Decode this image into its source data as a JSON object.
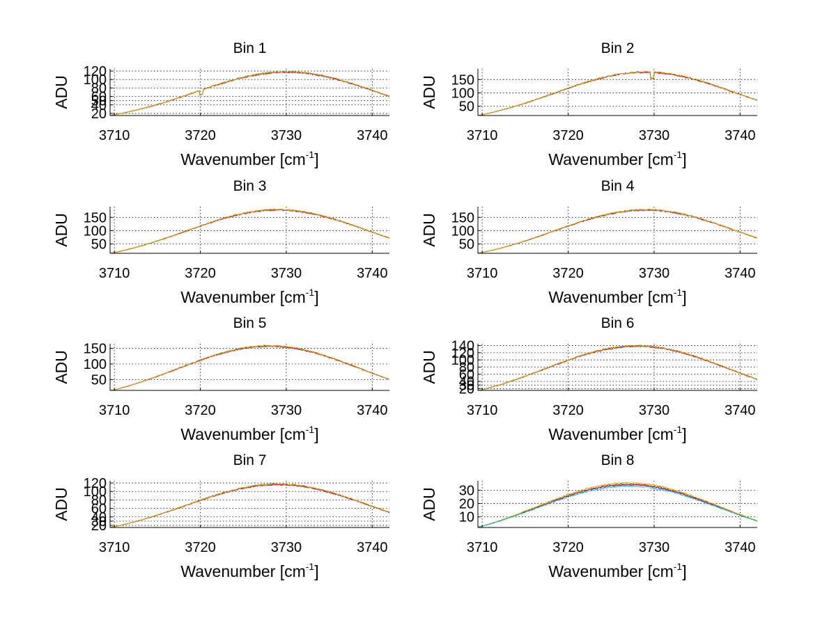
{
  "chart_data": [
    {
      "type": "line",
      "title": "Bin 1",
      "xlabel": "Wavenumber [cm",
      "xlabel_sup": "-1",
      "xlabel_close": "]",
      "ylabel": "ADU",
      "xlim": [
        3709.5,
        3742
      ],
      "ylim": [
        15,
        125
      ],
      "xticks": [
        3710,
        3720,
        3730,
        3740
      ],
      "yticks": [
        20,
        40,
        50,
        60,
        80,
        100,
        120
      ],
      "series": [
        {
          "name": "blue",
          "color": "#1f3fbf",
          "peak_x": 3730,
          "peak_y": 118,
          "width": 15,
          "y_at_3710": 17,
          "dip_x": 3720.1,
          "dip_depth": 10
        },
        {
          "name": "red",
          "color": "#d62020",
          "peak_x": 3730,
          "peak_y": 117,
          "width": 15,
          "y_at_3710": 17,
          "dip_x": 3720.1,
          "dip_depth": 10
        },
        {
          "name": "yellow",
          "color": "#c8a800",
          "peak_x": 3730,
          "peak_y": 118.5,
          "width": 15,
          "y_at_3710": 17,
          "dip_x": 3720.1,
          "dip_depth": 10
        }
      ]
    },
    {
      "type": "line",
      "title": "Bin 2",
      "xlabel": "Wavenumber [cm",
      "xlabel_sup": "-1",
      "xlabel_close": "]",
      "ylabel": "ADU",
      "xlim": [
        3709.5,
        3742
      ],
      "ylim": [
        15,
        190
      ],
      "xticks": [
        3710,
        3720,
        3730,
        3740
      ],
      "yticks": [
        50,
        100,
        150
      ],
      "series": [
        {
          "name": "blue",
          "color": "#1f3fbf",
          "peak_x": 3729,
          "peak_y": 178,
          "width": 15,
          "y_at_3710": 18,
          "dip_x": 3729.8,
          "dip_depth": 22
        },
        {
          "name": "red",
          "color": "#d62020",
          "peak_x": 3729,
          "peak_y": 177,
          "width": 15,
          "y_at_3710": 18,
          "dip_x": 3729.8,
          "dip_depth": 22
        },
        {
          "name": "yellow",
          "color": "#c8a800",
          "peak_x": 3729,
          "peak_y": 179,
          "width": 15,
          "y_at_3710": 18,
          "dip_x": 3729.8,
          "dip_depth": 22
        }
      ]
    },
    {
      "type": "line",
      "title": "Bin 3",
      "xlabel": "Wavenumber [cm",
      "xlabel_sup": "-1",
      "xlabel_close": "]",
      "ylabel": "ADU",
      "xlim": [
        3709.5,
        3742
      ],
      "ylim": [
        15,
        190
      ],
      "xticks": [
        3710,
        3720,
        3730,
        3740
      ],
      "yticks": [
        50,
        100,
        150
      ],
      "series": [
        {
          "name": "blue",
          "color": "#1f3fbf",
          "peak_x": 3729,
          "peak_y": 178,
          "width": 15,
          "y_at_3710": 18,
          "dip_x": null,
          "dip_depth": 0
        },
        {
          "name": "red",
          "color": "#d62020",
          "peak_x": 3729,
          "peak_y": 177,
          "width": 15,
          "y_at_3710": 18,
          "dip_x": null,
          "dip_depth": 0
        },
        {
          "name": "yellow",
          "color": "#c8a800",
          "peak_x": 3729,
          "peak_y": 179,
          "width": 15,
          "y_at_3710": 18,
          "dip_x": null,
          "dip_depth": 0
        }
      ]
    },
    {
      "type": "line",
      "title": "Bin 4",
      "xlabel": "Wavenumber [cm",
      "xlabel_sup": "-1",
      "xlabel_close": "]",
      "ylabel": "ADU",
      "xlim": [
        3709.5,
        3742
      ],
      "ylim": [
        15,
        190
      ],
      "xticks": [
        3710,
        3720,
        3730,
        3740
      ],
      "yticks": [
        50,
        100,
        150
      ],
      "series": [
        {
          "name": "blue",
          "color": "#1f3fbf",
          "peak_x": 3729,
          "peak_y": 178,
          "width": 15,
          "y_at_3710": 18,
          "dip_x": null,
          "dip_depth": 0
        },
        {
          "name": "red",
          "color": "#d62020",
          "peak_x": 3729,
          "peak_y": 177,
          "width": 15,
          "y_at_3710": 18,
          "dip_x": null,
          "dip_depth": 0
        },
        {
          "name": "yellow",
          "color": "#c8a800",
          "peak_x": 3729,
          "peak_y": 179,
          "width": 15,
          "y_at_3710": 18,
          "dip_x": null,
          "dip_depth": 0
        }
      ]
    },
    {
      "type": "line",
      "title": "Bin 5",
      "xlabel": "Wavenumber [cm",
      "xlabel_sup": "-1",
      "xlabel_close": "]",
      "ylabel": "ADU",
      "xlim": [
        3709.5,
        3742
      ],
      "ylim": [
        15,
        165
      ],
      "xticks": [
        3710,
        3720,
        3730,
        3740
      ],
      "yticks": [
        50,
        100,
        150
      ],
      "series": [
        {
          "name": "blue",
          "color": "#1f3fbf",
          "peak_x": 3728,
          "peak_y": 158,
          "width": 15,
          "y_at_3710": 17,
          "dip_x": null,
          "dip_depth": 0
        },
        {
          "name": "red",
          "color": "#d62020",
          "peak_x": 3728,
          "peak_y": 157,
          "width": 15,
          "y_at_3710": 17,
          "dip_x": null,
          "dip_depth": 0
        },
        {
          "name": "yellow",
          "color": "#c8a800",
          "peak_x": 3728,
          "peak_y": 159,
          "width": 15,
          "y_at_3710": 17,
          "dip_x": null,
          "dip_depth": 0
        }
      ]
    },
    {
      "type": "line",
      "title": "Bin 6",
      "xlabel": "Wavenumber [cm",
      "xlabel_sup": "-1",
      "xlabel_close": "]",
      "ylabel": "ADU",
      "xlim": [
        3709.5,
        3742
      ],
      "ylim": [
        15,
        145
      ],
      "xticks": [
        3710,
        3720,
        3730,
        3740
      ],
      "yticks": [
        20,
        30,
        40,
        60,
        80,
        100,
        120,
        140
      ],
      "series": [
        {
          "name": "blue",
          "color": "#1f3fbf",
          "peak_x": 3728,
          "peak_y": 139,
          "width": 15,
          "y_at_3710": 17,
          "dip_x": null,
          "dip_depth": 0
        },
        {
          "name": "red",
          "color": "#d62020",
          "peak_x": 3728,
          "peak_y": 138,
          "width": 15,
          "y_at_3710": 17,
          "dip_x": null,
          "dip_depth": 0
        },
        {
          "name": "yellow",
          "color": "#c8a800",
          "peak_x": 3728,
          "peak_y": 140,
          "width": 15,
          "y_at_3710": 17,
          "dip_x": null,
          "dip_depth": 0
        }
      ]
    },
    {
      "type": "line",
      "title": "Bin 7",
      "xlabel": "Wavenumber [cm",
      "xlabel_sup": "-1",
      "xlabel_close": "]",
      "ylabel": "ADU",
      "xlim": [
        3709.5,
        3742
      ],
      "ylim": [
        15,
        125
      ],
      "xticks": [
        3710,
        3720,
        3730,
        3740
      ],
      "yticks": [
        20,
        30,
        40,
        60,
        80,
        100,
        120
      ],
      "series": [
        {
          "name": "blue",
          "color": "#1f3fbf",
          "peak_x": 3729,
          "peak_y": 117,
          "width": 15,
          "y_at_3710": 17,
          "dip_x": null,
          "dip_depth": 0
        },
        {
          "name": "red",
          "color": "#d62020",
          "peak_x": 3729,
          "peak_y": 116,
          "width": 15,
          "y_at_3710": 17,
          "dip_x": null,
          "dip_depth": 0
        },
        {
          "name": "yellow",
          "color": "#c8a800",
          "peak_x": 3729,
          "peak_y": 118,
          "width": 15,
          "y_at_3710": 17,
          "dip_x": null,
          "dip_depth": 0
        }
      ]
    },
    {
      "type": "line",
      "title": "Bin 8",
      "xlabel": "Wavenumber [cm",
      "xlabel_sup": "-1",
      "xlabel_close": "]",
      "ylabel": "ADU",
      "xlim": [
        3709.5,
        3742
      ],
      "ylim": [
        2,
        37
      ],
      "xticks": [
        3710,
        3720,
        3730,
        3740
      ],
      "yticks": [
        10,
        20,
        30
      ],
      "series": [
        {
          "name": "blue",
          "color": "#1f3fbf",
          "peak_x": 3727,
          "peak_y": 34,
          "width": 15,
          "y_at_3710": 3,
          "dip_x": null,
          "dip_depth": 0
        },
        {
          "name": "red",
          "color": "#d62020",
          "peak_x": 3727,
          "peak_y": 34.5,
          "width": 15,
          "y_at_3710": 3,
          "dip_x": null,
          "dip_depth": 0
        },
        {
          "name": "yellow",
          "color": "#c8a800",
          "peak_x": 3727,
          "peak_y": 35.5,
          "width": 15,
          "y_at_3710": 3,
          "dip_x": null,
          "dip_depth": 0
        },
        {
          "name": "cyan",
          "color": "#20b8c8",
          "peak_x": 3727,
          "peak_y": 33,
          "width": 15,
          "y_at_3710": 3,
          "dip_x": null,
          "dip_depth": 0
        }
      ]
    }
  ]
}
